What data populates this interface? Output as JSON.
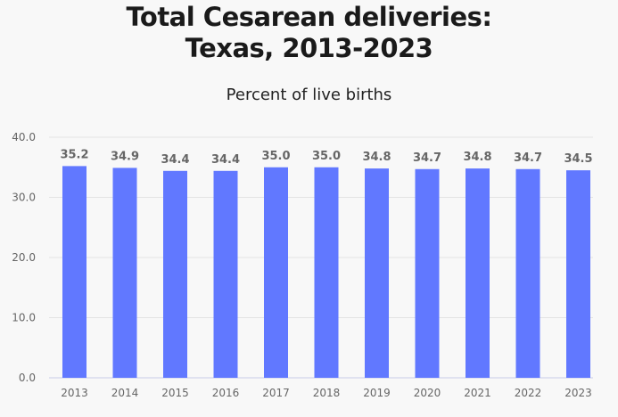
{
  "chart_data": {
    "type": "bar",
    "title_lines": [
      "Total Cesarean deliveries:",
      "Texas, 2013-2023"
    ],
    "subtitle": "Percent of live births",
    "categories": [
      "2013",
      "2014",
      "2015",
      "2016",
      "2017",
      "2018",
      "2019",
      "2020",
      "2021",
      "2022",
      "2023"
    ],
    "values": [
      35.2,
      34.9,
      34.4,
      34.4,
      35.0,
      35.0,
      34.8,
      34.7,
      34.8,
      34.7,
      34.5
    ],
    "data_labels": [
      "35.2",
      "34.9",
      "34.4",
      "34.4",
      "35.0",
      "35.0",
      "34.8",
      "34.7",
      "34.8",
      "34.7",
      "34.5"
    ],
    "ylim": [
      0,
      40
    ],
    "yticks": [
      "0.0",
      "10.0",
      "20.0",
      "30.0",
      "40.0"
    ],
    "grid": true,
    "colors": {
      "bar": "#6178ff",
      "label": "#666666",
      "grid": "#e4e4e4",
      "axis": "#c8cce8"
    }
  }
}
